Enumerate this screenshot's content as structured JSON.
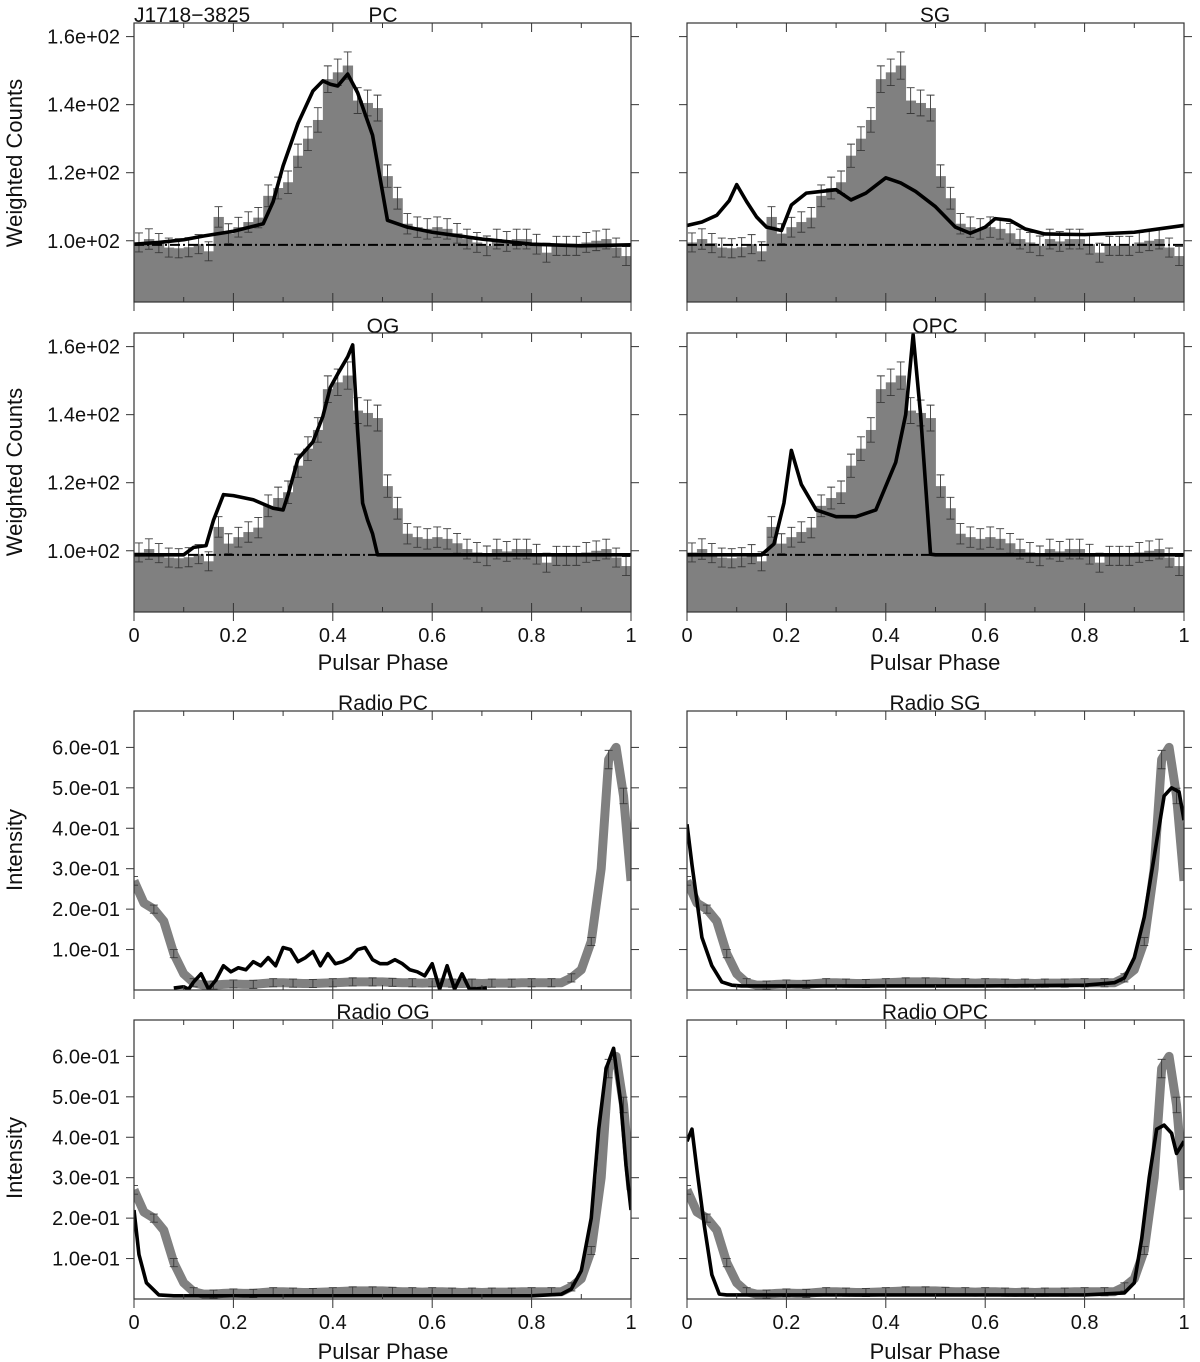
{
  "figure": {
    "source_label": "J1718−3825",
    "xlabel": "Pulsar Phase",
    "ylabel_gamma": "Weighted Counts",
    "ylabel_radio": "Intensity",
    "x_tick_labels": [
      "0",
      "0.2",
      "0.4",
      "0.6",
      "0.8",
      "1"
    ],
    "gamma_tick_labels": [
      "1.0e+02",
      "1.2e+02",
      "1.4e+02",
      "1.6e+02"
    ],
    "radio_tick_labels": [
      "1.0e-01",
      "2.0e-01",
      "3.0e-01",
      "4.0e-01",
      "5.0e-01",
      "6.0e-01"
    ],
    "colors": {
      "histogram": "#808080",
      "model": "#000000",
      "axes": "#333333"
    }
  },
  "chart_data": {
    "type": "bar",
    "gamma_ylim": [
      82,
      164
    ],
    "radio_ylim": [
      0,
      0.69
    ],
    "xlim": [
      0,
      1
    ],
    "gamma_background": 98.8,
    "gamma_histogram": {
      "bin_width": 0.02,
      "values": [
        99.5,
        100.5,
        99.3,
        98,
        97.8,
        98.1,
        99,
        96.9,
        107,
        102.1,
        104,
        105.5,
        106.8,
        113.2,
        115.5,
        117.2,
        125,
        130,
        135.5,
        147.5,
        149.5,
        151.5,
        141.2,
        140.5,
        139,
        119,
        112.5,
        105,
        104,
        103.5,
        104,
        103.5,
        102.2,
        100.5,
        99.5,
        98.5,
        100.5,
        99.8,
        100.5,
        100.5,
        99,
        96.5,
        98.5,
        98.5,
        98.5,
        99.5,
        100,
        100.5,
        98,
        95.5
      ],
      "errors": [
        2.8,
        3,
        2.8,
        2.8,
        2.8,
        2.8,
        2.8,
        2.8,
        3,
        2.9,
        2.9,
        3,
        3,
        3.2,
        3.2,
        3.3,
        3.4,
        3.5,
        3.6,
        3.9,
        3.9,
        4,
        3.8,
        3.8,
        3.8,
        3.3,
        3.2,
        3,
        3,
        3,
        3,
        3,
        2.9,
        2.9,
        2.9,
        2.9,
        2.9,
        2.9,
        2.9,
        2.9,
        2.9,
        2.8,
        2.8,
        2.8,
        2.8,
        2.9,
        2.9,
        2.9,
        2.8,
        2.8
      ]
    },
    "radio_profile": {
      "x": [
        0,
        0.02,
        0.04,
        0.06,
        0.08,
        0.1,
        0.12,
        0.14,
        0.16,
        0.18,
        0.2,
        0.22,
        0.24,
        0.26,
        0.28,
        0.3,
        0.32,
        0.34,
        0.36,
        0.38,
        0.4,
        0.42,
        0.44,
        0.46,
        0.48,
        0.5,
        0.52,
        0.54,
        0.56,
        0.58,
        0.6,
        0.62,
        0.64,
        0.66,
        0.68,
        0.7,
        0.72,
        0.74,
        0.76,
        0.78,
        0.8,
        0.82,
        0.84,
        0.86,
        0.88,
        0.9,
        0.92,
        0.94,
        0.955,
        0.97,
        0.985,
        1
      ],
      "y": [
        0.27,
        0.215,
        0.2,
        0.17,
        0.09,
        0.04,
        0.018,
        0.012,
        0.012,
        0.014,
        0.015,
        0.014,
        0.014,
        0.016,
        0.018,
        0.018,
        0.017,
        0.016,
        0.016,
        0.017,
        0.018,
        0.019,
        0.02,
        0.02,
        0.02,
        0.02,
        0.019,
        0.018,
        0.018,
        0.017,
        0.018,
        0.018,
        0.017,
        0.016,
        0.017,
        0.016,
        0.017,
        0.017,
        0.017,
        0.018,
        0.018,
        0.018,
        0.018,
        0.018,
        0.03,
        0.05,
        0.12,
        0.3,
        0.57,
        0.6,
        0.48,
        0.27
      ]
    },
    "panels": [
      {
        "kind": "gamma",
        "title": "PC",
        "model": {
          "x": [
            0,
            0.05,
            0.1,
            0.14,
            0.2,
            0.26,
            0.28,
            0.3,
            0.33,
            0.36,
            0.38,
            0.395,
            0.41,
            0.43,
            0.45,
            0.48,
            0.51,
            0.55,
            0.6,
            0.7,
            0.8,
            0.9,
            1
          ],
          "y": [
            99,
            99.5,
            100.3,
            101.4,
            102.8,
            105,
            111.5,
            122,
            134.5,
            144,
            147,
            146,
            145.5,
            149,
            143.5,
            131,
            106,
            104,
            102.5,
            100.5,
            99,
            98.5,
            98.8
          ]
        }
      },
      {
        "kind": "gamma",
        "title": "SG",
        "model": {
          "x": [
            0,
            0.03,
            0.06,
            0.085,
            0.1,
            0.12,
            0.14,
            0.16,
            0.19,
            0.21,
            0.24,
            0.27,
            0.3,
            0.33,
            0.36,
            0.4,
            0.43,
            0.46,
            0.5,
            0.54,
            0.57,
            0.6,
            0.62,
            0.65,
            0.68,
            0.72,
            0.8,
            0.9,
            1
          ],
          "y": [
            104.5,
            105.5,
            107.5,
            111.8,
            116.5,
            111.5,
            107,
            104,
            103,
            110.5,
            114,
            114.5,
            115,
            112,
            114,
            118.5,
            117,
            114.5,
            110,
            104,
            102.2,
            104,
            106.5,
            106,
            103.5,
            102,
            101.8,
            102.5,
            104.5
          ]
        }
      },
      {
        "kind": "gamma",
        "title": "OG",
        "model": {
          "x": [
            0,
            0.05,
            0.1,
            0.12,
            0.145,
            0.16,
            0.18,
            0.2,
            0.24,
            0.28,
            0.3,
            0.31,
            0.33,
            0.36,
            0.38,
            0.395,
            0.41,
            0.43,
            0.44,
            0.45,
            0.46,
            0.47,
            0.48,
            0.49,
            0.5,
            0.6,
            0.8,
            1
          ],
          "y": [
            98.8,
            98.8,
            98.8,
            101,
            101.5,
            109,
            116.5,
            116.2,
            115,
            112.5,
            112,
            116.5,
            127,
            132,
            139.5,
            148,
            152,
            157,
            160.5,
            135,
            114,
            109,
            105,
            98.8,
            98.8,
            98.8,
            98.8,
            98.8
          ]
        }
      },
      {
        "kind": "gamma",
        "title": "OPC",
        "model": {
          "x": [
            0,
            0.1,
            0.15,
            0.175,
            0.195,
            0.21,
            0.23,
            0.26,
            0.3,
            0.34,
            0.38,
            0.42,
            0.44,
            0.455,
            0.47,
            0.49,
            0.5,
            0.6,
            0.8,
            1
          ],
          "y": [
            98.8,
            98.8,
            98.8,
            102,
            114,
            129.5,
            119.5,
            112,
            110,
            110,
            112,
            126,
            140,
            163.5,
            140,
            99,
            98.8,
            98.8,
            98.8,
            98.8
          ]
        }
      },
      {
        "kind": "radio",
        "title": "Radio PC",
        "model": {
          "x": [
            0.08,
            0.1,
            0.11,
            0.12,
            0.135,
            0.15,
            0.165,
            0.18,
            0.195,
            0.21,
            0.225,
            0.24,
            0.255,
            0.27,
            0.285,
            0.3,
            0.315,
            0.33,
            0.345,
            0.36,
            0.375,
            0.39,
            0.405,
            0.42,
            0.435,
            0.45,
            0.465,
            0.48,
            0.495,
            0.51,
            0.525,
            0.54,
            0.555,
            0.57,
            0.585,
            0.6,
            0.615,
            0.63,
            0.645,
            0.66,
            0.675,
            0.69,
            0.71
          ],
          "y": [
            0.005,
            0.008,
            0.002,
            0.02,
            0.04,
            0.002,
            0.025,
            0.06,
            0.045,
            0.055,
            0.05,
            0.07,
            0.06,
            0.08,
            0.06,
            0.105,
            0.1,
            0.07,
            0.08,
            0.095,
            0.06,
            0.09,
            0.065,
            0.07,
            0.08,
            0.1,
            0.105,
            0.075,
            0.065,
            0.065,
            0.075,
            0.065,
            0.05,
            0.045,
            0.035,
            0.065,
            0.002,
            0.06,
            0.002,
            0.04,
            0.002,
            0.003,
            0.005
          ]
        }
      },
      {
        "kind": "radio",
        "title": "Radio SG",
        "model": {
          "x": [
            0,
            0.01,
            0.03,
            0.05,
            0.07,
            0.09,
            0.11,
            0.15,
            0.2,
            0.4,
            0.6,
            0.8,
            0.86,
            0.88,
            0.9,
            0.92,
            0.94,
            0.96,
            0.975,
            0.99,
            1
          ],
          "y": [
            0.41,
            0.31,
            0.13,
            0.06,
            0.02,
            0.012,
            0.01,
            0.01,
            0.01,
            0.01,
            0.01,
            0.012,
            0.018,
            0.03,
            0.08,
            0.18,
            0.33,
            0.48,
            0.5,
            0.49,
            0.42
          ]
        }
      },
      {
        "kind": "radio",
        "title": "Radio OG",
        "model": {
          "x": [
            0,
            0.01,
            0.025,
            0.05,
            0.08,
            0.12,
            0.2,
            0.4,
            0.6,
            0.8,
            0.86,
            0.88,
            0.9,
            0.92,
            0.935,
            0.95,
            0.965,
            0.98,
            0.99,
            1
          ],
          "y": [
            0.22,
            0.11,
            0.04,
            0.01,
            0.008,
            0.008,
            0.008,
            0.008,
            0.008,
            0.008,
            0.012,
            0.025,
            0.07,
            0.2,
            0.42,
            0.57,
            0.62,
            0.48,
            0.33,
            0.22
          ]
        }
      },
      {
        "kind": "radio",
        "title": "Radio OPC",
        "model": {
          "x": [
            0,
            0.01,
            0.02,
            0.035,
            0.05,
            0.065,
            0.08,
            0.1,
            0.2,
            0.4,
            0.6,
            0.8,
            0.88,
            0.9,
            0.915,
            0.93,
            0.945,
            0.96,
            0.975,
            0.985,
            1
          ],
          "y": [
            0.39,
            0.42,
            0.32,
            0.18,
            0.06,
            0.012,
            0.01,
            0.01,
            0.01,
            0.01,
            0.01,
            0.01,
            0.015,
            0.04,
            0.15,
            0.3,
            0.42,
            0.43,
            0.41,
            0.36,
            0.39
          ]
        }
      }
    ]
  }
}
